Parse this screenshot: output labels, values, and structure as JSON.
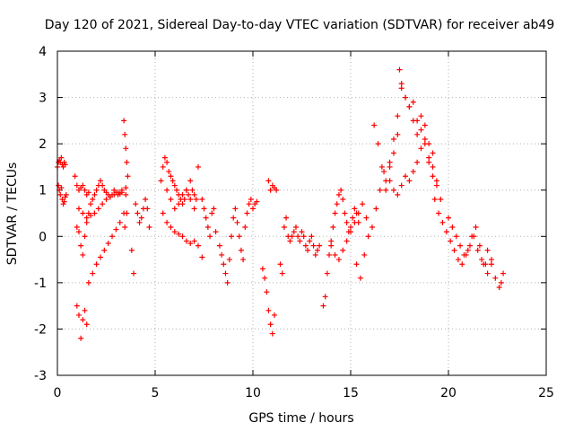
{
  "chart_data": {
    "type": "scatter",
    "title": "Day 120 of 2021, Sidereal Day-to-day VTEC variation (SDTVAR) for receiver ab49",
    "xlabel": "GPS time / hours",
    "ylabel": "SDTVAR / TECUs",
    "xlim": [
      0,
      25
    ],
    "ylim": [
      -3,
      4
    ],
    "xticks": [
      0,
      5,
      10,
      15,
      20,
      25
    ],
    "yticks": [
      -3,
      -2,
      -1,
      0,
      1,
      2,
      3,
      4
    ],
    "grid": true,
    "marker": "+",
    "color": "#ff0000",
    "series": [
      {
        "name": "SDTVAR",
        "x": [
          0.0,
          0.05,
          0.1,
          0.15,
          0.2,
          0.25,
          0.3,
          0.35,
          0.4,
          0.05,
          0.1,
          0.15,
          0.2,
          0.25,
          0.3,
          0.35,
          0.4,
          0.45,
          0.9,
          1.0,
          1.1,
          1.2,
          1.3,
          1.4,
          1.5,
          1.6,
          1.0,
          1.1,
          1.2,
          1.3,
          1.4,
          1.5,
          1.0,
          1.1,
          1.2,
          1.3,
          1.4,
          1.5,
          1.6,
          1.7,
          1.8,
          1.9,
          2.0,
          2.1,
          2.2,
          2.3,
          2.4,
          2.5,
          2.6,
          2.7,
          2.8,
          2.9,
          3.0,
          3.1,
          3.2,
          3.3,
          1.1,
          1.3,
          1.5,
          1.7,
          1.9,
          2.1,
          2.3,
          2.5,
          2.7,
          2.9,
          3.1,
          3.3,
          3.5,
          1.6,
          1.8,
          2.0,
          2.2,
          2.4,
          2.6,
          2.8,
          3.0,
          3.2,
          3.4,
          3.4,
          3.45,
          3.5,
          3.55,
          3.6,
          3.5,
          3.55,
          3.45,
          3.8,
          3.9,
          4.0,
          4.1,
          4.2,
          4.3,
          4.4,
          4.5,
          4.6,
          4.7,
          5.3,
          5.4,
          5.5,
          5.6,
          5.7,
          5.8,
          5.9,
          6.0,
          6.1,
          6.2,
          6.3,
          6.4,
          6.5,
          6.6,
          6.7,
          6.8,
          6.9,
          7.0,
          7.1,
          7.2,
          5.4,
          5.6,
          5.8,
          6.0,
          6.2,
          6.4,
          6.6,
          6.8,
          7.0,
          7.2,
          7.4,
          5.6,
          5.8,
          6.0,
          6.2,
          6.4,
          6.6,
          6.8,
          7.0,
          7.4,
          7.5,
          7.6,
          7.7,
          7.8,
          7.9,
          8.0,
          8.1,
          8.3,
          8.4,
          8.5,
          8.6,
          8.7,
          8.8,
          8.9,
          9.0,
          9.1,
          9.2,
          9.3,
          9.4,
          9.5,
          9.6,
          9.7,
          9.8,
          9.9,
          10.0,
          10.1,
          10.2,
          10.5,
          10.6,
          10.7,
          10.8,
          10.9,
          11.0,
          11.1,
          10.8,
          10.9,
          11.0,
          11.1,
          11.2,
          11.4,
          11.5,
          11.6,
          11.7,
          11.8,
          11.9,
          12.0,
          12.1,
          12.2,
          12.3,
          12.4,
          12.5,
          12.6,
          12.7,
          12.8,
          12.9,
          13.0,
          13.1,
          13.2,
          13.3,
          13.4,
          13.6,
          13.7,
          13.8,
          13.9,
          14.0,
          14.1,
          14.2,
          14.3,
          14.4,
          14.5,
          14.6,
          14.7,
          14.8,
          14.9,
          15.0,
          15.1,
          15.2,
          15.3,
          15.4,
          14.0,
          14.2,
          14.4,
          14.6,
          14.8,
          15.0,
          15.2,
          15.4,
          15.6,
          15.8,
          15.3,
          15.5,
          15.7,
          15.9,
          16.1,
          16.3,
          16.5,
          16.7,
          16.2,
          16.4,
          16.6,
          16.8,
          17.0,
          17.2,
          17.4,
          17.6,
          17.8,
          18.0,
          18.2,
          18.4,
          18.6,
          18.8,
          19.0,
          19.2,
          19.4,
          17.0,
          17.2,
          17.4,
          17.5,
          17.6,
          17.8,
          18.0,
          18.2,
          18.4,
          18.6,
          18.8,
          19.0,
          19.2,
          16.8,
          17.0,
          17.2,
          17.4,
          17.6,
          17.8,
          18.0,
          18.2,
          18.4,
          18.6,
          18.8,
          19.0,
          19.2,
          19.4,
          19.6,
          19.3,
          19.5,
          19.7,
          19.9,
          20.1,
          20.3,
          20.5,
          20.7,
          20.9,
          21.1,
          21.3,
          21.5,
          21.7,
          21.9,
          20.0,
          20.2,
          20.4,
          20.6,
          20.8,
          21.0,
          21.2,
          21.4,
          21.6,
          21.8,
          22.0,
          22.2,
          22.0,
          22.2,
          22.4,
          22.6,
          22.7,
          22.8
        ],
        "y": [
          1.5,
          1.6,
          1.65,
          1.6,
          1.7,
          1.55,
          1.5,
          1.6,
          1.55,
          1.1,
          1.0,
          0.9,
          1.05,
          0.8,
          0.7,
          0.75,
          0.85,
          0.9,
          1.3,
          1.1,
          1.0,
          1.05,
          1.1,
          1.0,
          0.9,
          0.95,
          -1.5,
          -1.7,
          -2.2,
          -1.8,
          -1.6,
          -1.9,
          0.2,
          0.1,
          -0.2,
          -0.4,
          0.0,
          0.3,
          0.5,
          0.7,
          0.8,
          0.9,
          1.0,
          1.1,
          1.2,
          1.1,
          1.0,
          0.95,
          0.9,
          0.85,
          0.9,
          1.0,
          0.95,
          0.9,
          0.92,
          0.95,
          0.6,
          0.5,
          0.4,
          0.45,
          0.5,
          0.6,
          0.7,
          0.8,
          0.85,
          0.9,
          0.95,
          1.0,
          1.05,
          -1.0,
          -0.8,
          -0.6,
          -0.45,
          -0.3,
          -0.15,
          0.0,
          0.15,
          0.3,
          0.5,
          2.5,
          2.2,
          1.9,
          1.6,
          1.3,
          0.9,
          0.5,
          0.2,
          -0.3,
          -0.8,
          0.7,
          0.5,
          0.3,
          0.4,
          0.6,
          0.8,
          0.6,
          0.2,
          1.2,
          1.5,
          1.7,
          1.6,
          1.4,
          1.3,
          1.2,
          1.1,
          1.0,
          0.9,
          0.8,
          0.7,
          0.8,
          1.0,
          0.9,
          1.2,
          1.0,
          0.9,
          0.8,
          1.5,
          0.5,
          0.3,
          0.2,
          0.1,
          0.05,
          0.0,
          -0.1,
          -0.15,
          -0.1,
          -0.2,
          -0.45,
          1.0,
          0.8,
          0.6,
          0.7,
          0.9,
          1.0,
          0.8,
          0.6,
          0.8,
          0.6,
          0.4,
          0.2,
          0.0,
          0.5,
          0.6,
          0.1,
          -0.2,
          -0.4,
          -0.6,
          -0.8,
          -1.0,
          -0.5,
          0.0,
          0.4,
          0.6,
          0.3,
          0.0,
          -0.3,
          -0.5,
          0.2,
          0.5,
          0.7,
          0.8,
          0.6,
          0.7,
          0.75,
          -0.7,
          -0.9,
          -1.2,
          -1.6,
          -1.9,
          -2.1,
          -1.7,
          1.2,
          1.0,
          1.1,
          1.05,
          1.0,
          -0.6,
          -0.8,
          0.2,
          0.4,
          0.0,
          -0.1,
          0.0,
          0.1,
          0.2,
          0.0,
          -0.1,
          0.1,
          0.0,
          -0.2,
          -0.3,
          -0.1,
          0.0,
          -0.2,
          -0.4,
          -0.3,
          -0.2,
          -1.5,
          -1.3,
          -0.8,
          -0.4,
          -0.1,
          0.2,
          0.5,
          0.7,
          0.9,
          1.0,
          0.8,
          0.5,
          0.3,
          0.1,
          0.2,
          0.4,
          0.6,
          0.5,
          0.3,
          -0.2,
          -0.4,
          -0.5,
          -0.3,
          -0.1,
          0.1,
          0.3,
          0.5,
          0.7,
          0.4,
          -0.6,
          -0.9,
          -0.4,
          0.0,
          0.2,
          0.6,
          1.0,
          1.4,
          2.4,
          2.0,
          1.5,
          1.2,
          1.6,
          2.1,
          2.6,
          3.3,
          3.0,
          2.8,
          2.5,
          2.2,
          2.6,
          2.0,
          1.6,
          1.3,
          1.1,
          1.5,
          1.8,
          2.2,
          3.6,
          3.2,
          3.0,
          2.8,
          2.9,
          2.5,
          2.3,
          2.4,
          2.0,
          1.8,
          1.0,
          1.2,
          1.0,
          0.9,
          1.1,
          1.3,
          1.2,
          1.4,
          1.6,
          1.9,
          2.1,
          1.7,
          1.5,
          1.2,
          0.8,
          0.8,
          0.5,
          0.3,
          0.1,
          -0.1,
          -0.3,
          -0.5,
          -0.6,
          -0.4,
          -0.2,
          0.0,
          -0.3,
          -0.5,
          -0.6,
          0.4,
          0.2,
          0.0,
          -0.2,
          -0.4,
          -0.3,
          0.0,
          0.2,
          -0.2,
          -0.6,
          -0.8,
          -0.5,
          -0.3,
          -0.6,
          -0.9,
          -1.1,
          -1.0,
          -0.8
        ]
      }
    ]
  }
}
